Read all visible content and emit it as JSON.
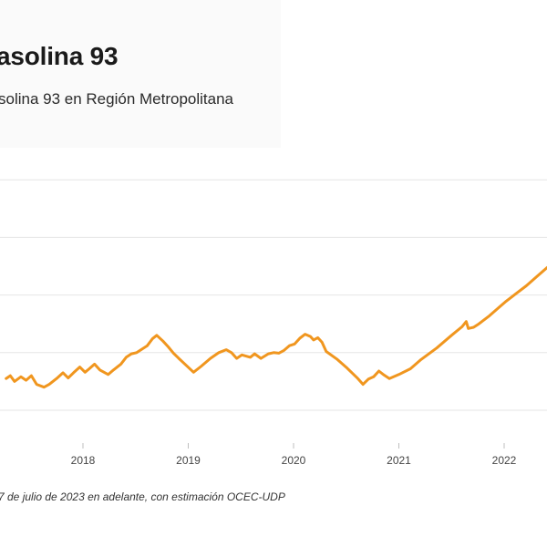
{
  "header": {
    "title": "asolina 93",
    "subtitle": "solina 93 en Región Metropolitana"
  },
  "footnote": "7 de julio de 2023 en adelante, con estimación OCEC-UDP",
  "colors": {
    "line": "#f0961f",
    "grid": "#e6e6e6",
    "axis": "#bfbfbf"
  },
  "chart_data": {
    "type": "line",
    "title": "asolina 93",
    "subtitle": "solina 93 en Región Metropolitana",
    "xlabel": "",
    "ylabel": "",
    "grid": true,
    "xlim": [
      2017.27,
      2022.6
    ],
    "ylim": [
      0,
      5
    ],
    "x_ticks": [
      {
        "value": 2018,
        "label": "2018"
      },
      {
        "value": 2019,
        "label": "2019"
      },
      {
        "value": 2020,
        "label": "2020"
      },
      {
        "value": 2021,
        "label": "2021"
      },
      {
        "value": 2022,
        "label": "2022"
      }
    ],
    "y_gridlines": [
      1,
      2,
      3,
      4
    ],
    "series": [
      {
        "color": "#f0961f",
        "points": [
          [
            2017.27,
            0.55
          ],
          [
            2017.31,
            0.6
          ],
          [
            2017.35,
            0.5
          ],
          [
            2017.41,
            0.58
          ],
          [
            2017.46,
            0.52
          ],
          [
            2017.51,
            0.6
          ],
          [
            2017.56,
            0.45
          ],
          [
            2017.63,
            0.4
          ],
          [
            2017.68,
            0.45
          ],
          [
            2017.75,
            0.55
          ],
          [
            2017.81,
            0.65
          ],
          [
            2017.86,
            0.56
          ],
          [
            2017.91,
            0.65
          ],
          [
            2017.97,
            0.75
          ],
          [
            2018.02,
            0.66
          ],
          [
            2018.06,
            0.72
          ],
          [
            2018.11,
            0.8
          ],
          [
            2018.16,
            0.7
          ],
          [
            2018.24,
            0.62
          ],
          [
            2018.29,
            0.7
          ],
          [
            2018.36,
            0.8
          ],
          [
            2018.41,
            0.92
          ],
          [
            2018.46,
            0.98
          ],
          [
            2018.51,
            1.0
          ],
          [
            2018.56,
            1.06
          ],
          [
            2018.61,
            1.12
          ],
          [
            2018.66,
            1.24
          ],
          [
            2018.7,
            1.3
          ],
          [
            2018.76,
            1.2
          ],
          [
            2018.81,
            1.1
          ],
          [
            2018.86,
            0.99
          ],
          [
            2018.91,
            0.9
          ],
          [
            2018.98,
            0.78
          ],
          [
            2019.05,
            0.66
          ],
          [
            2019.12,
            0.76
          ],
          [
            2019.21,
            0.9
          ],
          [
            2019.29,
            1.0
          ],
          [
            2019.36,
            1.05
          ],
          [
            2019.41,
            1.0
          ],
          [
            2019.46,
            0.9
          ],
          [
            2019.51,
            0.96
          ],
          [
            2019.59,
            0.92
          ],
          [
            2019.63,
            0.98
          ],
          [
            2019.69,
            0.9
          ],
          [
            2019.76,
            0.98
          ],
          [
            2019.81,
            1.0
          ],
          [
            2019.86,
            0.99
          ],
          [
            2019.91,
            1.04
          ],
          [
            2019.96,
            1.12
          ],
          [
            2020.01,
            1.15
          ],
          [
            2020.06,
            1.25
          ],
          [
            2020.11,
            1.32
          ],
          [
            2020.16,
            1.28
          ],
          [
            2020.19,
            1.22
          ],
          [
            2020.23,
            1.26
          ],
          [
            2020.27,
            1.18
          ],
          [
            2020.31,
            1.02
          ],
          [
            2020.41,
            0.89
          ],
          [
            2020.51,
            0.73
          ],
          [
            2020.61,
            0.55
          ],
          [
            2020.66,
            0.45
          ],
          [
            2020.71,
            0.54
          ],
          [
            2020.76,
            0.58
          ],
          [
            2020.81,
            0.68
          ],
          [
            2020.86,
            0.61
          ],
          [
            2020.91,
            0.55
          ],
          [
            2021.0,
            0.62
          ],
          [
            2021.11,
            0.72
          ],
          [
            2021.21,
            0.88
          ],
          [
            2021.36,
            1.08
          ],
          [
            2021.5,
            1.3
          ],
          [
            2021.6,
            1.45
          ],
          [
            2021.64,
            1.54
          ],
          [
            2021.66,
            1.42
          ],
          [
            2021.71,
            1.44
          ],
          [
            2021.76,
            1.5
          ],
          [
            2021.86,
            1.64
          ],
          [
            2021.96,
            1.8
          ],
          [
            2022.01,
            1.88
          ],
          [
            2022.06,
            1.95
          ],
          [
            2022.11,
            2.02
          ],
          [
            2022.21,
            2.16
          ],
          [
            2022.31,
            2.32
          ],
          [
            2022.41,
            2.48
          ],
          [
            2022.51,
            2.6
          ],
          [
            2022.6,
            2.7
          ]
        ]
      }
    ]
  }
}
